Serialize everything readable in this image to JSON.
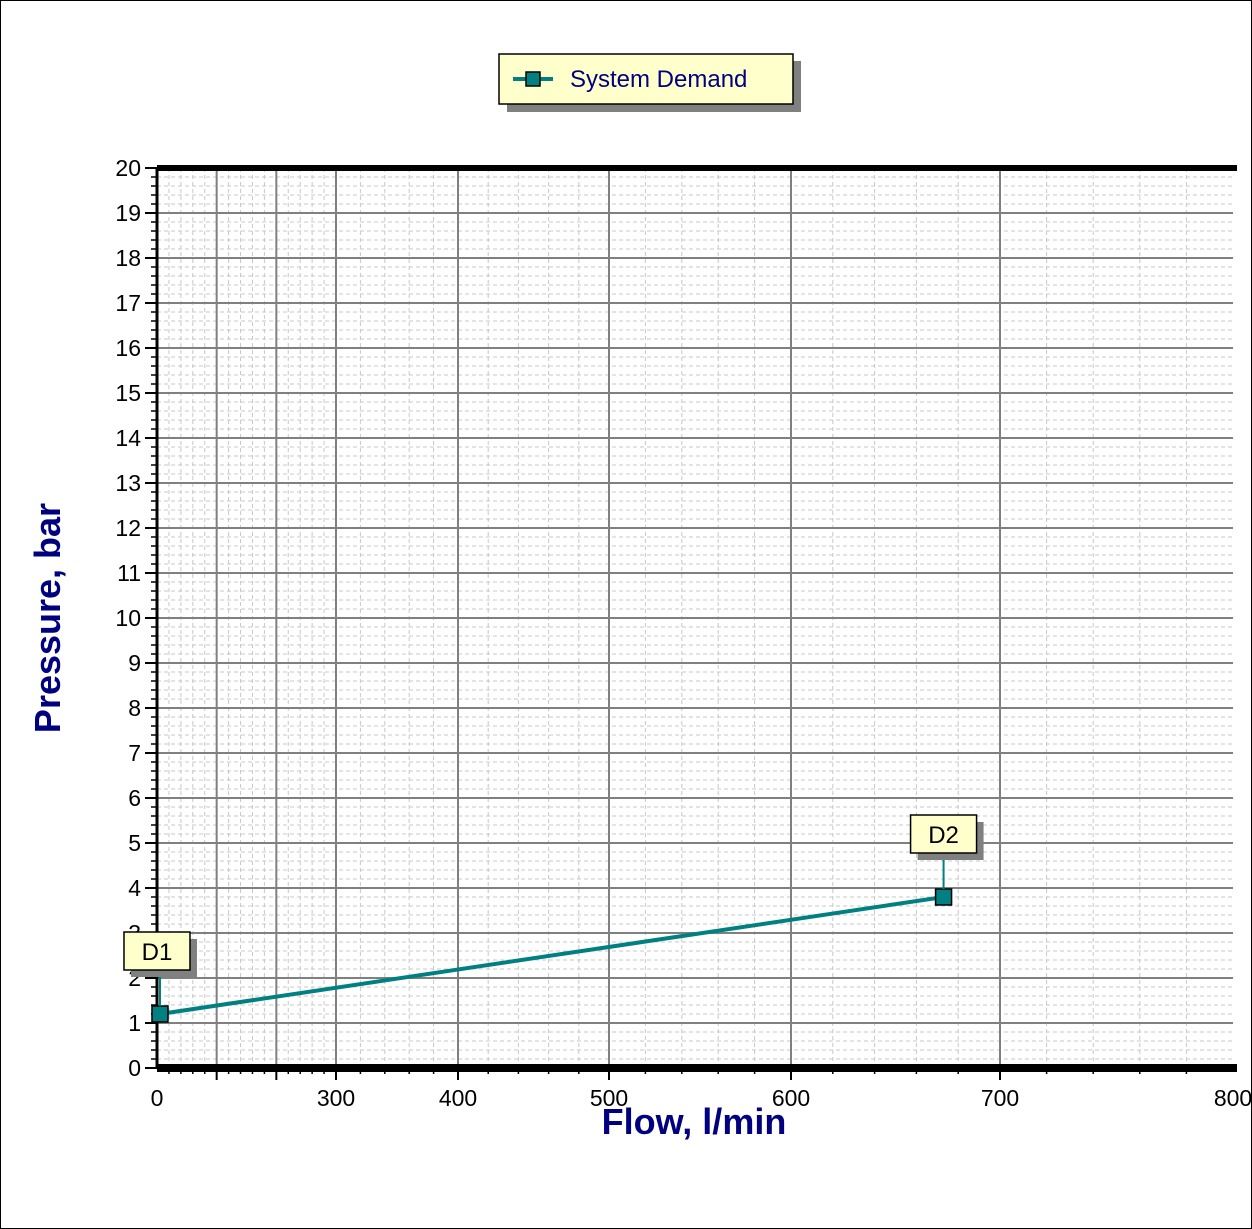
{
  "chart_data": {
    "type": "line",
    "xlabel": "Flow, l/min",
    "ylabel": "Pressure, bar",
    "xlim": [
      0,
      800
    ],
    "ylim": [
      0,
      20
    ],
    "x_tick_labels": [
      0,
      300,
      400,
      500,
      600,
      700,
      800
    ],
    "y_ticks": [
      0,
      1,
      2,
      3,
      4,
      5,
      6,
      7,
      8,
      9,
      10,
      11,
      12,
      13,
      14,
      15,
      16,
      17,
      18,
      19,
      20
    ],
    "grid": true,
    "legend": "top-center",
    "series": [
      {
        "name": "System Demand",
        "color": "#008080",
        "marker": "square",
        "points": [
          {
            "x": 5,
            "y": 1.2,
            "label": "D1"
          },
          {
            "x": 673,
            "y": 3.8,
            "label": "D2"
          }
        ]
      }
    ]
  }
}
